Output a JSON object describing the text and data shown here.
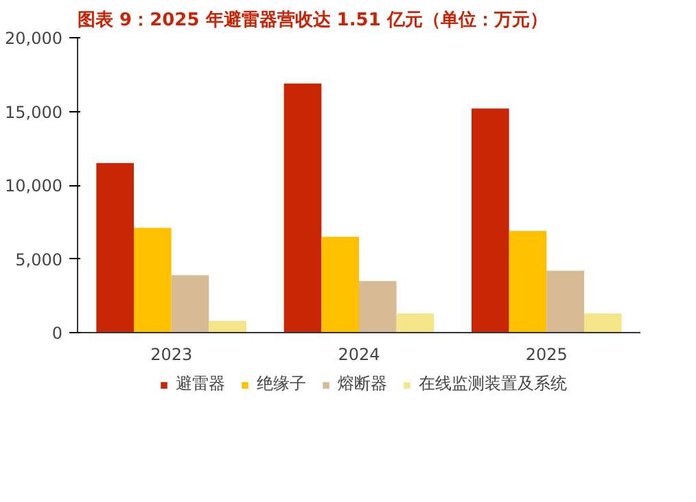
{
  "chart_data": {
    "type": "bar",
    "title": "图表 9：2025 年避雷器营收达 1.51 亿元（单位：万元）",
    "categories": [
      "2023",
      "2024",
      "2025"
    ],
    "series": [
      {
        "name": "避雷器",
        "color": "#c82506",
        "values": [
          11500,
          16900,
          15200
        ]
      },
      {
        "name": "绝缘子",
        "color": "#ffc000",
        "values": [
          7100,
          6500,
          6900
        ]
      },
      {
        "name": "熔断器",
        "color": "#d6bb94",
        "values": [
          3900,
          3500,
          4200
        ]
      },
      {
        "name": "在线监测装置及系统",
        "color": "#f5e68a",
        "values": [
          800,
          1300,
          1300
        ]
      }
    ],
    "ylim": [
      0,
      20000
    ],
    "yticks": [
      {
        "value": 0,
        "label": "0"
      },
      {
        "value": 5000,
        "label": "5,000"
      },
      {
        "value": 10000,
        "label": "10,000"
      },
      {
        "value": 15000,
        "label": "15,000"
      },
      {
        "value": 20000,
        "label": "20,000"
      }
    ],
    "grid": false,
    "legend": "bottom"
  }
}
